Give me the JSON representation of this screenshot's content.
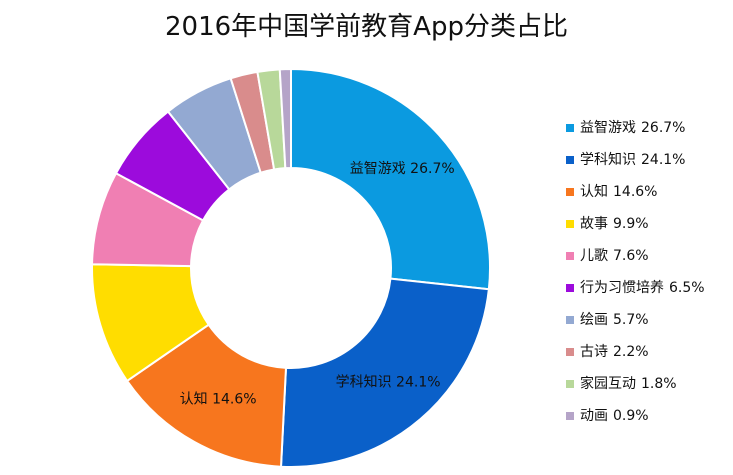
{
  "chart_data": {
    "type": "pie",
    "subtype": "donut",
    "title": "2016年中国学前教育App分类占比",
    "legend_position": "right",
    "slices": [
      {
        "label": "益智游戏",
        "value": 26.7,
        "value_text": "26.7%",
        "color": "#0b9ae0",
        "data_label": "益智游戏 26.7%"
      },
      {
        "label": "学科知识",
        "value": 24.1,
        "value_text": "24.1%",
        "color": "#0a60c9",
        "data_label": "学科知识 24.1%"
      },
      {
        "label": "认知",
        "value": 14.6,
        "value_text": "14.6%",
        "color": "#f7761e",
        "data_label": "认知 14.6%"
      },
      {
        "label": "故事",
        "value": 9.9,
        "value_text": "9.9%",
        "color": "#ffdd00",
        "data_label": ""
      },
      {
        "label": "儿歌",
        "value": 7.6,
        "value_text": "7.6%",
        "color": "#f07fb3",
        "data_label": ""
      },
      {
        "label": "行为习惯培养",
        "value": 6.5,
        "value_text": "6.5%",
        "color": "#9c0bdc",
        "data_label": ""
      },
      {
        "label": "绘画",
        "value": 5.7,
        "value_text": "5.7%",
        "color": "#93a9d2",
        "data_label": ""
      },
      {
        "label": "古诗",
        "value": 2.2,
        "value_text": "2.2%",
        "color": "#d98c8c",
        "data_label": ""
      },
      {
        "label": "家园互动",
        "value": 1.8,
        "value_text": "1.8%",
        "color": "#b8d89a",
        "data_label": ""
      },
      {
        "label": "动画",
        "value": 0.9,
        "value_text": "0.9%",
        "color": "#b5a4c8",
        "data_label": ""
      }
    ]
  }
}
